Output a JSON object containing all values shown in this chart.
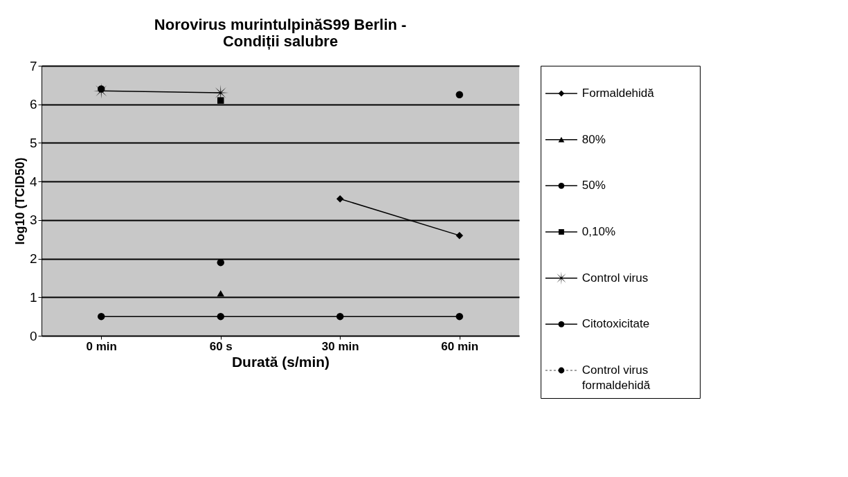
{
  "chart_data": {
    "type": "line",
    "title": [
      "Norovirus murintulpinăS99 Berlin -",
      "Condiții salubre"
    ],
    "xlabel": "Durată (s/min)",
    "ylabel": "log10 (TCID50)",
    "categories": [
      "0 min",
      "60 s",
      "30 min",
      "60 min"
    ],
    "series": [
      {
        "name": "Formaldehidă",
        "color": "#000000",
        "marker": "diamond",
        "values": [
          null,
          null,
          3.55,
          2.6
        ]
      },
      {
        "name": "80%",
        "color": "#000000",
        "marker": "triangle",
        "values": [
          null,
          1.1,
          null,
          null
        ]
      },
      {
        "name": "50%",
        "color": "#000000",
        "marker": "circle",
        "values": [
          null,
          1.9,
          null,
          null
        ]
      },
      {
        "name": "0,10%",
        "color": "#000000",
        "marker": "square",
        "values": [
          null,
          6.1,
          null,
          null
        ]
      },
      {
        "name": "Control virus",
        "color": "#000000",
        "marker": "cross",
        "values": [
          6.35,
          6.3,
          null,
          null
        ]
      },
      {
        "name": "Citotoxicitate",
        "color": "#000000",
        "marker": "circle",
        "values": [
          0.5,
          0.5,
          0.5,
          0.5
        ]
      },
      {
        "name": "Control virus\nformaldehidă",
        "color": "#000000",
        "marker": "circle",
        "type": "scatter",
        "values": [
          6.4,
          null,
          null,
          6.25
        ]
      }
    ],
    "ylim": [
      0,
      7
    ],
    "yticks": [
      0,
      1,
      2,
      3,
      4,
      5,
      6,
      7
    ],
    "grid": "y",
    "legend": "right"
  }
}
